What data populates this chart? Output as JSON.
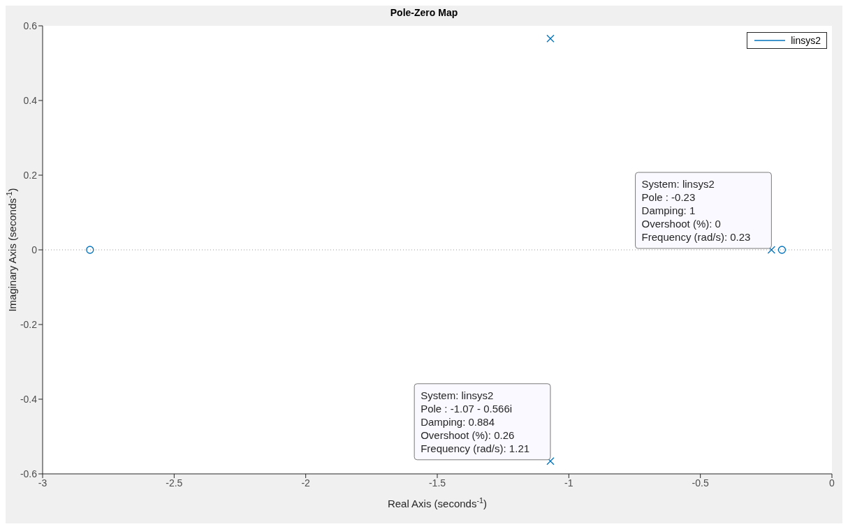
{
  "chart_data": {
    "type": "scatter",
    "title": "Pole-Zero Map",
    "xlabel": "Real Axis (seconds$^{-1}$)",
    "ylabel": "Imaginary Axis (seconds$^{-1}$)",
    "series": [
      {
        "name": "linsys2",
        "color": "#0072bd",
        "marker": "cross",
        "x": [
          -1.07,
          -1.07,
          -0.23
        ],
        "values": [
          0.566,
          -0.566,
          0
        ]
      },
      {
        "color": "#0072bd",
        "marker": "circle",
        "x": [
          -2.82,
          -0.19
        ],
        "values": [
          0,
          0
        ]
      }
    ],
    "xlim": [
      -3,
      0
    ],
    "xticks": [
      -3,
      -2.5,
      -2,
      -1.5,
      -1,
      -0.5,
      0
    ],
    "ylim": [
      -0.6,
      0.6
    ],
    "yticks": [
      -0.6,
      -0.4,
      -0.2,
      0,
      0.2,
      0.4,
      0.6
    ],
    "grid": false,
    "legend": "top right",
    "ref_lines": [
      {
        "axis": "y",
        "value": 0,
        "color": "#999999",
        "line_style": "dotted"
      }
    ],
    "annotations": [
      {
        "text": "System: linsys2\nPole : -0.23\nDamping: 1\nOvershoot (%): 0\nFrequency (rad/s): 0.23",
        "x": -0.23,
        "y": 0
      },
      {
        "text": "System: linsys2\nPole : -1.07 - 0.566i\nDamping: 0.884\nOvershoot (%): 0.26\nFrequency (rad/s): 1.21",
        "x": -1.07,
        "y": -0.566
      }
    ]
  }
}
